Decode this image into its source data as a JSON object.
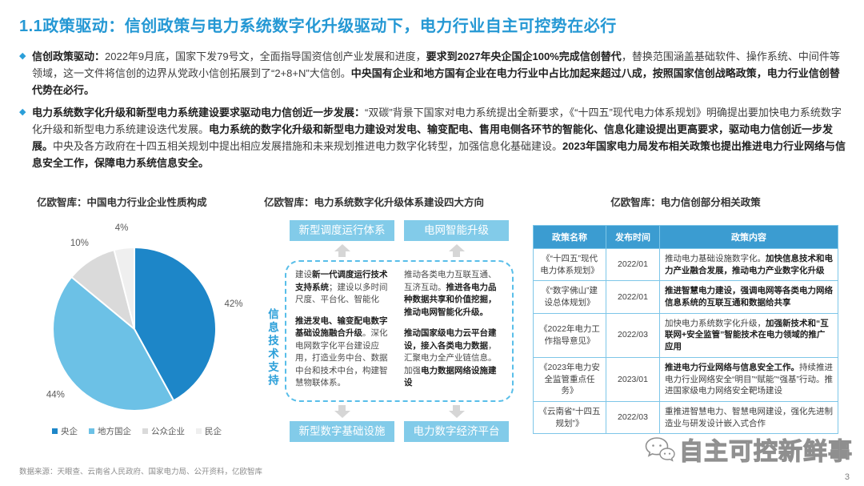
{
  "slide": {
    "title": "1.1政策驱动：信创政策与电力系统数字化升级驱动下，电力行业自主可控势在必行",
    "page_number": "3",
    "source_note": "数据来源：天眼查、云南省人民政府、国家电力局、公开资料，亿欧智库",
    "watermark_text": "自主可控新鲜事"
  },
  "colors": {
    "accent_blue": "#2598d4",
    "box_blue": "#82cbe9",
    "table_header_blue": "#3b9cd1",
    "table_border_blue": "#7ec6e8",
    "dashed_border_blue": "#58bee9",
    "arrow_gray": "#d6d6d6"
  },
  "bullets": [
    {
      "segments": [
        {
          "t": "信创政策驱动：",
          "b": true
        },
        {
          "t": "2022年9月底，国家下发79号文，全面指导国资信创产业发展和进度，",
          "b": false
        },
        {
          "t": "要求到2027年央企国企100%完成信创替代",
          "b": true
        },
        {
          "t": "，替换范围涵盖基础软件、操作系统、中间件等领域，这一文件将信创的边界从党政小信创拓展到了“2+8+N”大信创。",
          "b": false
        },
        {
          "t": "中央国有企业和地方国有企业在电力行业中占比加起来超过八成，按照国家信创战略政策，电力行业信创替代势在必行。",
          "b": true
        }
      ]
    },
    {
      "segments": [
        {
          "t": "电力系统数字化升级和新型电力系统建设要求驱动电力信创近一步发展：",
          "b": true
        },
        {
          "t": "“双碳”背景下国家对电力系统提出全新要求，《“十四五”现代电力体系规划》明确提出要加快电力系统数字化升级和新型电力系统建设迭代发展。",
          "b": false
        },
        {
          "t": "电力系统的数字化升级和新型电力建设对发电、输变配电、售用电侧各环节的智能化、信息化建设提出更高要求，驱动电力信创近一步发展。",
          "b": true
        },
        {
          "t": "中央及各方政府在十四五相关规划中提出相应发展措施和未来规划推进电力数字化转型，加强信息化基础建设。",
          "b": false
        },
        {
          "t": "2023年国家电力局发布相关政策也提出推进电力行业网络与信息安全工作，保障电力系统信息安全。",
          "b": true
        }
      ]
    }
  ],
  "chart_data": {
    "type": "pie",
    "title": "亿欧智库：中国电力行业企业性质构成",
    "labels": [
      "央企",
      "地方国企",
      "公众企业",
      "民企"
    ],
    "values": [
      42,
      44,
      10,
      4
    ],
    "colors": [
      "#1d86c8",
      "#6cc1e6",
      "#dadada",
      "#efefef"
    ],
    "start_angle_deg": 0,
    "direction": "clockwise",
    "legend_position": "bottom"
  },
  "diagram": {
    "title": "亿欧智库：电力系统数字化升级体系建设四大方向",
    "side_label": "信息技术支持",
    "top_boxes": [
      "新型调度运行体系",
      "电网智能升级"
    ],
    "bottom_boxes": [
      "新型数字基础设施",
      "电力数字经济平台"
    ],
    "columns": [
      [
        [
          {
            "t": "建设",
            "b": false
          },
          {
            "t": "新一代调度运行技术支持系统",
            "b": true
          },
          {
            "t": "；建设以多时间尺度、平台化、智能化",
            "b": false
          }
        ],
        [
          {
            "t": "推进发电、输变配电数字基础设施融合升级",
            "b": true
          },
          {
            "t": "。深化电网数字化平台建设应用，打造业务中台、数据中台和技术中台，构建智慧物联体系。",
            "b": false
          }
        ]
      ],
      [
        [
          {
            "t": "推动各类电力互联互通、互济互动。",
            "b": false
          },
          {
            "t": "推进各电力品种数据共享和价值挖掘，推动电网智能化升级。",
            "b": true
          }
        ],
        [
          {
            "t": "推动国家级电力云平台建设，接入各类电力数据",
            "b": true
          },
          {
            "t": "，汇聚电力全产业链信息。加强",
            "b": false
          },
          {
            "t": "电力数据网络设施建设",
            "b": true
          }
        ]
      ]
    ]
  },
  "policy_table": {
    "title": "亿欧智库：电力信创部分相关政策",
    "headers": [
      "政策名称",
      "发布时间",
      "政策内容"
    ],
    "rows": [
      {
        "name": "《“十四五”现代电力体系规划》",
        "date": "2022/01",
        "content": [
          {
            "t": "推动电力基础设施数字化。",
            "b": false
          },
          {
            "t": "加快信息技术和电力产业融合发展，推动电力产业数字化升级",
            "b": true
          }
        ]
      },
      {
        "name": "《“数字佛山”建设总体规划》",
        "date": "2022/01",
        "content": [
          {
            "t": "推进智慧电力建设，强调电网等各类电力网络信息系统的互联互通和数据给共享",
            "b": true
          }
        ]
      },
      {
        "name": "《2022年电力工作指导意见》",
        "date": "2022/03",
        "content": [
          {
            "t": "加快电力系统数字化升级，",
            "b": false
          },
          {
            "t": "加强新技术和“互联网+安全监管”智能技术在电力领域的推广应用",
            "b": true
          }
        ]
      },
      {
        "name": "《2023年电力安全监管重点任务》",
        "date": "2023/01",
        "content": [
          {
            "t": "推进电力行业网络与信息安全工作。",
            "b": true
          },
          {
            "t": "持续推进电力行业网络安全“明目”“赋能”“强基”行动。推进国家级电力网络安全靶场建设",
            "b": false
          }
        ]
      },
      {
        "name": "《云南省“十四五规划”》",
        "date": "2022/03",
        "content": [
          {
            "t": "重推进智慧电力、智慧电网建设，强化先进制造业与研发设计嵌入式合作",
            "b": false
          }
        ]
      }
    ]
  }
}
